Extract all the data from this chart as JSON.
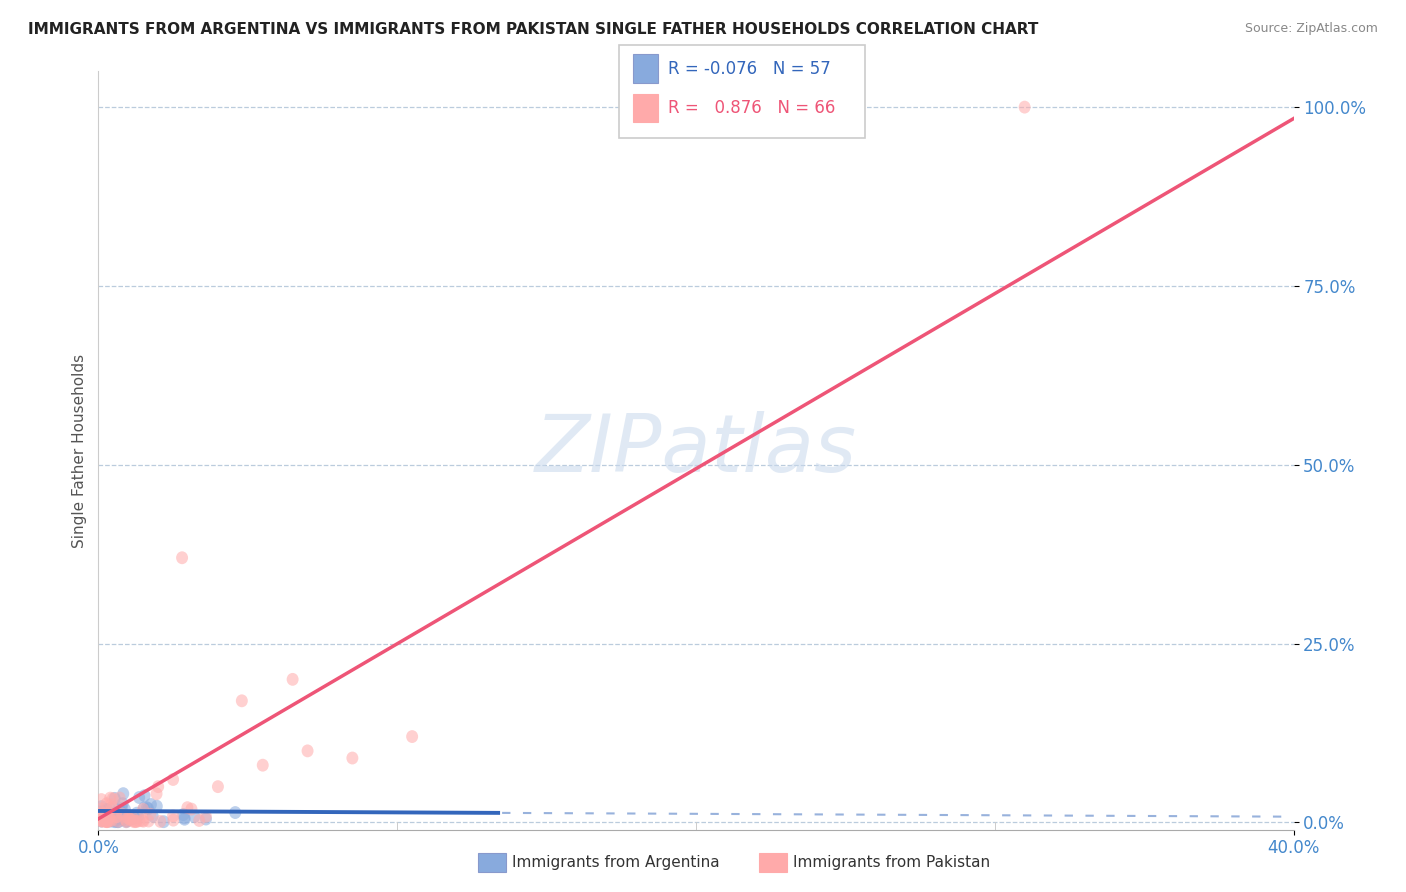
{
  "title": "IMMIGRANTS FROM ARGENTINA VS IMMIGRANTS FROM PAKISTAN SINGLE FATHER HOUSEHOLDS CORRELATION CHART",
  "source": "Source: ZipAtlas.com",
  "ylabel": "Single Father Households",
  "xlabel_argentina": "Immigrants from Argentina",
  "xlabel_pakistan": "Immigrants from Pakistan",
  "legend_argentina_R": -0.076,
  "legend_argentina_N": 57,
  "legend_pakistan_R": 0.876,
  "legend_pakistan_N": 66,
  "xlim": [
    0.0,
    0.4
  ],
  "ylim": [
    -0.01,
    1.05
  ],
  "yticks": [
    0.0,
    0.25,
    0.5,
    0.75,
    1.0
  ],
  "ytick_labels": [
    "0.0%",
    "25.0%",
    "50.0%",
    "75.0%",
    "100.0%"
  ],
  "xtick_labels": [
    "0.0%",
    "40.0%"
  ],
  "color_argentina": "#88AADD",
  "color_pakistan": "#FFAAAA",
  "color_argentina_line": "#3366BB",
  "color_pakistan_line": "#EE5577",
  "watermark": "ZIPatlas",
  "background_color": "#FFFFFF",
  "title_color": "#222222",
  "source_color": "#888888",
  "tick_color": "#4488CC",
  "ylabel_color": "#555555",
  "grid_color": "#BBCCDD",
  "legend_text_color_blue": "#3366BB",
  "legend_text_color_pink": "#EE5577"
}
